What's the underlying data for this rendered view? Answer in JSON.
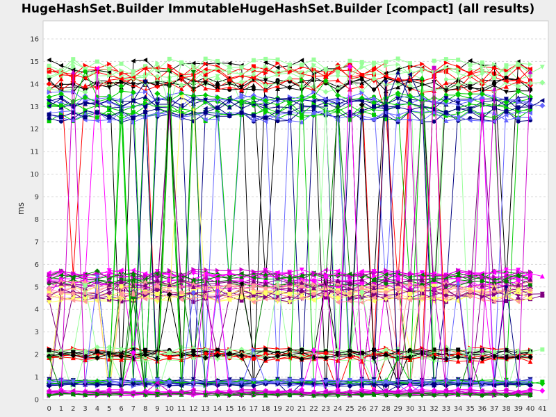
{
  "chart_data": {
    "type": "line",
    "title": "HugeHashSet.Builder ImmutableHugeHashSet.Builder [compact] (all results)",
    "xlabel": "",
    "ylabel": "ms",
    "xlim": [
      -0.5,
      41.5
    ],
    "ylim": [
      0,
      16.8
    ],
    "x_ticks": [
      0,
      1,
      2,
      3,
      4,
      5,
      6,
      7,
      8,
      9,
      10,
      11,
      12,
      13,
      14,
      15,
      16,
      17,
      18,
      19,
      20,
      21,
      22,
      23,
      24,
      25,
      26,
      27,
      28,
      29,
      30,
      31,
      32,
      33,
      34,
      35,
      36,
      37,
      38,
      39,
      40,
      41
    ],
    "y_ticks": [
      0,
      1,
      2,
      3,
      4,
      5,
      6,
      7,
      8,
      9,
      10,
      11,
      12,
      13,
      14,
      15,
      16
    ],
    "grid": true,
    "legend": "none",
    "bands": [
      {
        "y": 14.3,
        "spread": 1.1
      },
      {
        "y": 13.0,
        "spread": 0.9
      },
      {
        "y": 5.3,
        "spread": 0.6
      },
      {
        "y": 4.8,
        "spread": 0.7
      },
      {
        "y": 2.0,
        "spread": 0.45
      },
      {
        "y": 0.75,
        "spread": 0.25
      },
      {
        "y": 0.3,
        "spread": 0.2
      }
    ],
    "colors": [
      "#ff0000",
      "#0000ff",
      "#00cc00",
      "#ffff00",
      "#ff00ff",
      "#00ffff",
      "#ff9999",
      "#9999ff",
      "#99ff99",
      "#ffcc00",
      "#000080",
      "#800000",
      "#008000",
      "#808000",
      "#800080",
      "#008080",
      "#000000",
      "#ff6600",
      "#6666ff",
      "#33cc33",
      "#cc00cc",
      "#ff3399",
      "#ffff66",
      "#66ffff"
    ]
  }
}
